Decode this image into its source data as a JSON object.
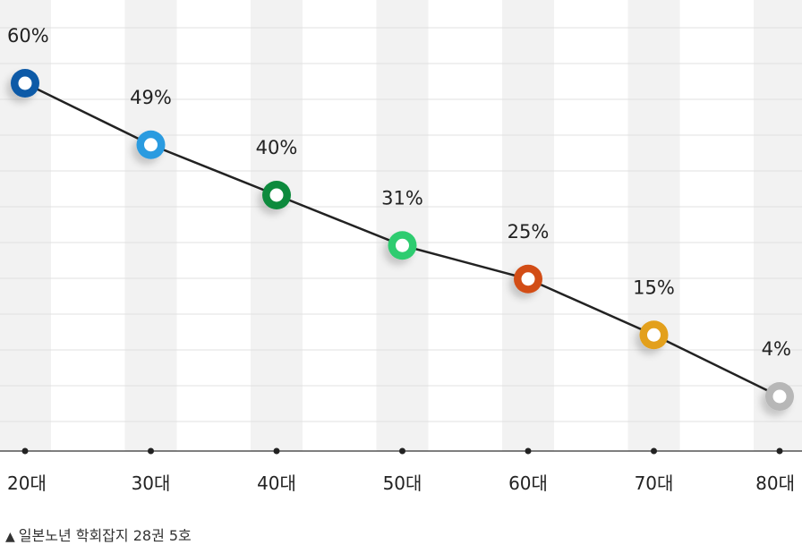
{
  "chart_data": {
    "type": "line",
    "categories": [
      "20대",
      "30대",
      "40대",
      "50대",
      "60대",
      "70대",
      "80대"
    ],
    "values": [
      60,
      49,
      40,
      31,
      25,
      15,
      4
    ],
    "value_labels": [
      "60%",
      "49%",
      "40%",
      "31%",
      "25%",
      "15%",
      "4%"
    ],
    "unit": "%",
    "grid": true,
    "marker_colors": [
      "#0d5aa7",
      "#2b9be0",
      "#0f8a3c",
      "#2fcc6f",
      "#d24d17",
      "#e3a01a",
      "#b7b7b7"
    ],
    "line_color": "#222222",
    "band_color": "#f2f2f2"
  },
  "source": {
    "marker": "▲",
    "text": "일본노년 학회잡지 28권 5호"
  }
}
